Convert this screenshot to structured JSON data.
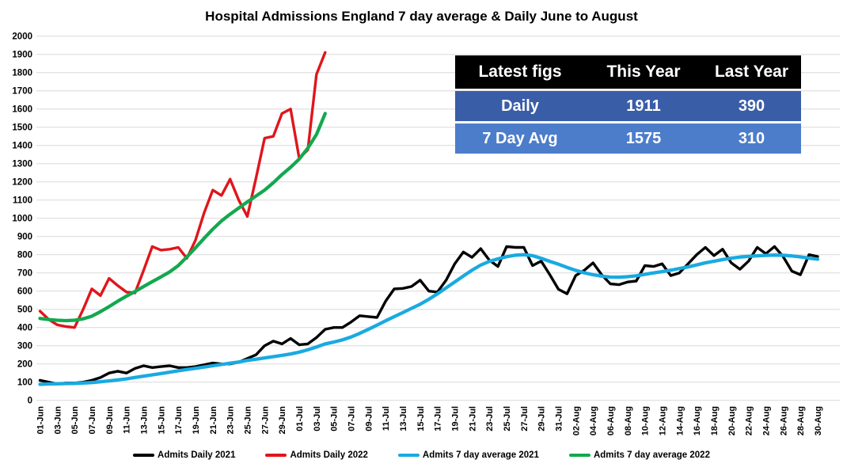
{
  "chart_data": {
    "type": "line",
    "title": "Hospital Admissions England 7 day average & Daily June to August",
    "xlabel": "",
    "ylabel": "",
    "ylim": [
      0,
      2000
    ],
    "ytick_step": 100,
    "grid": true,
    "gridline_color": "#D9D9D9",
    "legend_position": "bottom",
    "x_is_daily_dates": true,
    "days_total": 91,
    "x_tick_labels": [
      "01-Jun",
      "03-Jun",
      "05-Jun",
      "07-Jun",
      "09-Jun",
      "11-Jun",
      "13-Jun",
      "15-Jun",
      "17-Jun",
      "19-Jun",
      "21-Jun",
      "23-Jun",
      "25-Jun",
      "27-Jun",
      "29-Jun",
      "01-Jul",
      "03-Jul",
      "05-Jul",
      "07-Jul",
      "09-Jul",
      "11-Jul",
      "13-Jul",
      "15-Jul",
      "17-Jul",
      "19-Jul",
      "21-Jul",
      "23-Jul",
      "25-Jul",
      "27-Jul",
      "29-Jul",
      "31-Jul",
      "02-Aug",
      "04-Aug",
      "06-Aug",
      "08-Aug",
      "10-Aug",
      "12-Aug",
      "14-Aug",
      "16-Aug",
      "18-Aug",
      "20-Aug",
      "22-Aug",
      "24-Aug",
      "26-Aug",
      "28-Aug",
      "30-Aug"
    ],
    "x_tick_every_days": 2,
    "series": [
      {
        "name": "Admits Daily 2021",
        "color": "#000000",
        "start_day": 0,
        "values": [
          110,
          100,
          90,
          95,
          95,
          100,
          110,
          125,
          150,
          160,
          150,
          175,
          190,
          180,
          185,
          190,
          180,
          180,
          185,
          195,
          205,
          200,
          200,
          210,
          230,
          250,
          300,
          325,
          310,
          340,
          305,
          310,
          345,
          390,
          400,
          400,
          430,
          465,
          460,
          455,
          545,
          612,
          615,
          625,
          660,
          600,
          595,
          660,
          750,
          815,
          785,
          833,
          770,
          735,
          845,
          840,
          840,
          740,
          765,
          690,
          610,
          585,
          685,
          715,
          755,
          690,
          640,
          635,
          650,
          655,
          740,
          735,
          750,
          685,
          700,
          750,
          800,
          840,
          795,
          830,
          755,
          720,
          765,
          840,
          805,
          845,
          790,
          710,
          690,
          800,
          790
        ]
      },
      {
        "name": "Admits Daily 2022",
        "color": "#E0151C",
        "start_day": 0,
        "values": [
          490,
          445,
          415,
          405,
          400,
          500,
          612,
          575,
          670,
          630,
          595,
          590,
          715,
          845,
          825,
          830,
          840,
          780,
          880,
          1030,
          1155,
          1125,
          1215,
          1100,
          1010,
          1220,
          1440,
          1450,
          1575,
          1600,
          1330,
          1375,
          1790,
          1911
        ]
      },
      {
        "name": "Admits 7 day average 2021",
        "color": "#19AAE1",
        "start_day": 0,
        "values": [
          88,
          90,
          91,
          92,
          93,
          95,
          98,
          102,
          107,
          112,
          118,
          126,
          133,
          140,
          147,
          155,
          162,
          169,
          176,
          183,
          190,
          197,
          204,
          211,
          219,
          226,
          233,
          240,
          247,
          255,
          265,
          278,
          293,
          310,
          320,
          332,
          348,
          368,
          390,
          413,
          437,
          460,
          482,
          505,
          528,
          555,
          585,
          618,
          650,
          683,
          715,
          743,
          763,
          777,
          789,
          797,
          800,
          795,
          780,
          763,
          748,
          730,
          714,
          700,
          690,
          682,
          677,
          676,
          679,
          684,
          692,
          700,
          707,
          715,
          724,
          733,
          744,
          755,
          764,
          773,
          781,
          787,
          791,
          794,
          796,
          798,
          797,
          793,
          788,
          781,
          775
        ]
      },
      {
        "name": "Admits 7 day average 2022",
        "color": "#13A84F",
        "start_day": 0,
        "values": [
          450,
          444,
          440,
          438,
          440,
          448,
          462,
          487,
          515,
          545,
          572,
          598,
          625,
          652,
          678,
          705,
          740,
          788,
          838,
          890,
          940,
          985,
          1022,
          1056,
          1090,
          1122,
          1155,
          1195,
          1240,
          1280,
          1325,
          1385,
          1460,
          1575
        ]
      }
    ]
  },
  "stats_table": {
    "header_bg": "#000000",
    "row_colors": [
      "#3A5DA8",
      "#4C7DCB"
    ],
    "headers": [
      "Latest figs",
      "This Year",
      "Last Year"
    ],
    "rows": [
      {
        "label": "Daily",
        "this_year": "1911",
        "last_year": "390"
      },
      {
        "label": "7 Day Avg",
        "this_year": "1575",
        "last_year": "310"
      }
    ]
  }
}
